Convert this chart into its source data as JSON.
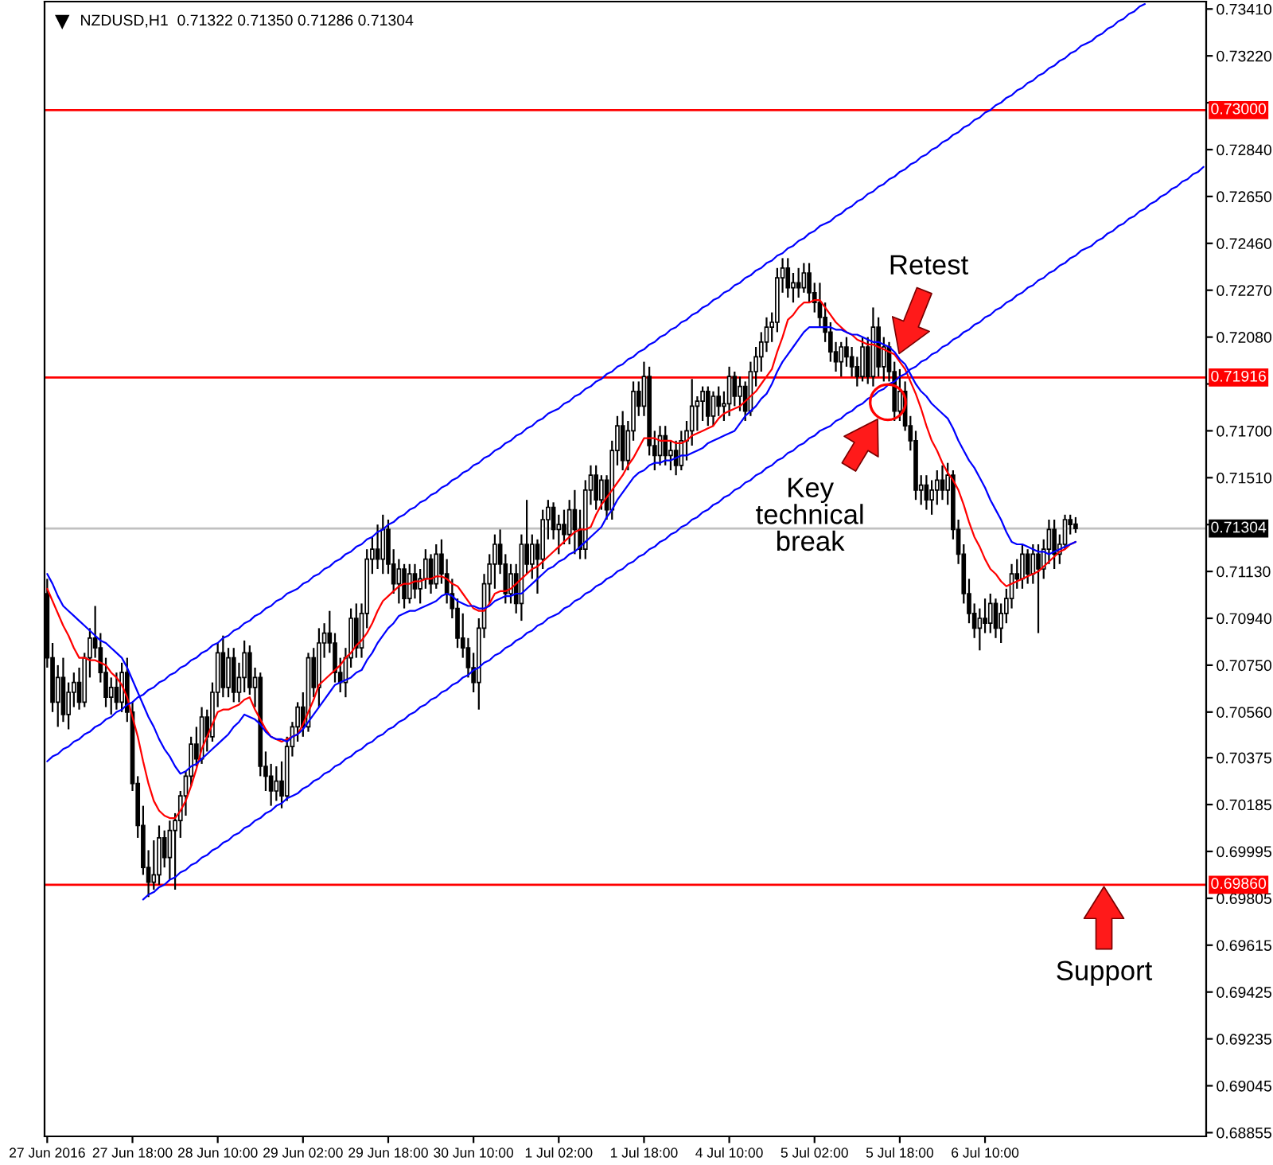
{
  "chart_data": {
    "type": "candlestick",
    "title": "NZDUSD,H1  0.71322 0.71350 0.71286 0.71304",
    "color": "#000000",
    "categories": [
      "27 Jun 2016",
      null,
      null,
      null,
      null,
      null,
      null,
      null,
      null,
      null,
      null,
      null,
      null,
      null,
      null,
      null,
      "27 Jun 18:00",
      null,
      null,
      null,
      null,
      null,
      null,
      null,
      null,
      null,
      null,
      null,
      null,
      null,
      null,
      null,
      "28 Jun 10:00",
      null,
      null,
      null,
      null,
      null,
      null,
      null,
      null,
      null,
      null,
      null,
      null,
      null,
      null,
      null,
      "29 Jun 02:00",
      null,
      null,
      null,
      null,
      null,
      null,
      null,
      null,
      null,
      null,
      null,
      null,
      null,
      null,
      null,
      "29 Jun 18:00",
      null,
      null,
      null,
      null,
      null,
      null,
      null,
      null,
      null,
      null,
      null,
      null,
      null,
      null,
      null,
      "30 Jun 10:00",
      null,
      null,
      null,
      null,
      null,
      null,
      null,
      null,
      null,
      null,
      null,
      null,
      null,
      null,
      null,
      "1 Jul 02:00",
      null,
      null,
      null,
      null,
      null,
      null,
      null,
      null,
      null,
      null,
      null,
      null,
      null,
      null,
      null,
      "1 Jul 18:00",
      null,
      null,
      null,
      null,
      null,
      null,
      null,
      null,
      null,
      null,
      null,
      null,
      null,
      null,
      null,
      "4 Jul 10:00",
      null,
      null,
      null,
      null,
      null,
      null,
      null,
      null,
      null,
      null,
      null,
      null,
      null,
      null,
      null,
      "5 Jul 02:00",
      null,
      null,
      null,
      null,
      null,
      null,
      null,
      null,
      null,
      null,
      null,
      null,
      null,
      null,
      null,
      "5 Jul 18:00",
      null,
      null,
      null,
      null,
      null,
      null,
      null,
      null,
      null,
      null,
      null,
      null,
      null,
      null,
      null,
      "6 Jul 10:00",
      null,
      null,
      null,
      null,
      null,
      null,
      null,
      null,
      null,
      null,
      null,
      null,
      null,
      null,
      null,
      null,
      null,
      null,
      null,
      null,
      null,
      null,
      null,
      null,
      null,
      null,
      null,
      null,
      null,
      null,
      null,
      null,
      null,
      null,
      null,
      null,
      null,
      null,
      null,
      null,
      null
    ],
    "ohlc": [
      [
        0.7104,
        0.711,
        0.7074,
        0.7078
      ],
      [
        0.7078,
        0.7084,
        0.7056,
        0.706
      ],
      [
        0.706,
        0.7075,
        0.705,
        0.707
      ],
      [
        0.707,
        0.7078,
        0.7052,
        0.7055
      ],
      [
        0.7055,
        0.7068,
        0.7049,
        0.7064
      ],
      [
        0.7064,
        0.7072,
        0.7058,
        0.7068
      ],
      [
        0.7068,
        0.7074,
        0.7057,
        0.706
      ],
      [
        0.706,
        0.708,
        0.7058,
        0.7078
      ],
      [
        0.7078,
        0.709,
        0.707,
        0.7086
      ],
      [
        0.7086,
        0.7099,
        0.7078,
        0.7082
      ],
      [
        0.7082,
        0.7088,
        0.7068,
        0.7072
      ],
      [
        0.7072,
        0.7078,
        0.7058,
        0.7062
      ],
      [
        0.7062,
        0.707,
        0.7055,
        0.7066
      ],
      [
        0.7066,
        0.7072,
        0.7057,
        0.706
      ],
      [
        0.706,
        0.7076,
        0.7056,
        0.7072
      ],
      [
        0.7072,
        0.7078,
        0.7052,
        0.7056
      ],
      [
        0.7056,
        0.706,
        0.7024,
        0.7027
      ],
      [
        0.7027,
        0.703,
        0.7005,
        0.701
      ],
      [
        0.701,
        0.7018,
        0.699,
        0.6993
      ],
      [
        0.6993,
        0.7,
        0.6981,
        0.6987
      ],
      [
        0.6987,
        0.7004,
        0.6984,
        0.699
      ],
      [
        0.699,
        0.701,
        0.6986,
        0.7005
      ],
      [
        0.7005,
        0.7008,
        0.6993,
        0.6997
      ],
      [
        0.6997,
        0.7012,
        0.6988,
        0.7008
      ],
      [
        0.7008,
        0.7015,
        0.6984,
        0.7012
      ],
      [
        0.7012,
        0.7024,
        0.7005,
        0.7022
      ],
      [
        0.7022,
        0.7032,
        0.7014,
        0.703
      ],
      [
        0.703,
        0.7046,
        0.7026,
        0.7043
      ],
      [
        0.7043,
        0.705,
        0.7034,
        0.7037
      ],
      [
        0.7037,
        0.7058,
        0.7035,
        0.7054
      ],
      [
        0.7054,
        0.7057,
        0.704,
        0.7046
      ],
      [
        0.7046,
        0.7068,
        0.7044,
        0.7064
      ],
      [
        0.7064,
        0.7084,
        0.7058,
        0.708
      ],
      [
        0.708,
        0.7087,
        0.7062,
        0.7066
      ],
      [
        0.7066,
        0.7082,
        0.7062,
        0.7078
      ],
      [
        0.7078,
        0.7082,
        0.706,
        0.7064
      ],
      [
        0.7064,
        0.7076,
        0.706,
        0.707
      ],
      [
        0.707,
        0.7085,
        0.7064,
        0.708
      ],
      [
        0.708,
        0.7083,
        0.7063,
        0.7066
      ],
      [
        0.7066,
        0.7074,
        0.7058,
        0.707
      ],
      [
        0.707,
        0.7072,
        0.703,
        0.7034
      ],
      [
        0.7034,
        0.704,
        0.7024,
        0.703
      ],
      [
        0.703,
        0.7035,
        0.7018,
        0.7024
      ],
      [
        0.7024,
        0.7034,
        0.702,
        0.7028
      ],
      [
        0.7028,
        0.7036,
        0.7017,
        0.7022
      ],
      [
        0.7022,
        0.7046,
        0.702,
        0.7042
      ],
      [
        0.7042,
        0.7052,
        0.7038,
        0.705
      ],
      [
        0.705,
        0.706,
        0.7044,
        0.7058
      ],
      [
        0.7058,
        0.7064,
        0.7046,
        0.705
      ],
      [
        0.705,
        0.708,
        0.7048,
        0.7078
      ],
      [
        0.7078,
        0.7082,
        0.7062,
        0.7066
      ],
      [
        0.7066,
        0.709,
        0.7058,
        0.7084
      ],
      [
        0.7084,
        0.7092,
        0.7078,
        0.7088
      ],
      [
        0.7088,
        0.7097,
        0.708,
        0.7084
      ],
      [
        0.7084,
        0.7088,
        0.7068,
        0.7072
      ],
      [
        0.7072,
        0.7078,
        0.7064,
        0.7068
      ],
      [
        0.7068,
        0.7082,
        0.7062,
        0.7078
      ],
      [
        0.7078,
        0.7098,
        0.7074,
        0.7094
      ],
      [
        0.7094,
        0.71,
        0.7078,
        0.7082
      ],
      [
        0.7082,
        0.71,
        0.7078,
        0.7096
      ],
      [
        0.7096,
        0.7122,
        0.709,
        0.7118
      ],
      [
        0.7118,
        0.7127,
        0.7112,
        0.7122
      ],
      [
        0.7122,
        0.7132,
        0.7114,
        0.7118
      ],
      [
        0.7118,
        0.7136,
        0.7112,
        0.713
      ],
      [
        0.713,
        0.7134,
        0.7112,
        0.7116
      ],
      [
        0.7116,
        0.7122,
        0.7104,
        0.7108
      ],
      [
        0.7108,
        0.7118,
        0.71,
        0.7114
      ],
      [
        0.7114,
        0.7116,
        0.7098,
        0.7102
      ],
      [
        0.7102,
        0.7116,
        0.71,
        0.7112
      ],
      [
        0.7112,
        0.7116,
        0.7102,
        0.7106
      ],
      [
        0.7106,
        0.7114,
        0.71,
        0.711
      ],
      [
        0.711,
        0.7122,
        0.7106,
        0.7118
      ],
      [
        0.7118,
        0.712,
        0.7104,
        0.7108
      ],
      [
        0.7108,
        0.7124,
        0.7106,
        0.712
      ],
      [
        0.712,
        0.7126,
        0.7108,
        0.7112
      ],
      [
        0.7112,
        0.7118,
        0.71,
        0.7104
      ],
      [
        0.7104,
        0.711,
        0.7094,
        0.7098
      ],
      [
        0.7098,
        0.7102,
        0.7082,
        0.7086
      ],
      [
        0.7086,
        0.7096,
        0.7078,
        0.7082
      ],
      [
        0.7082,
        0.7086,
        0.707,
        0.7074
      ],
      [
        0.7074,
        0.708,
        0.7064,
        0.7068
      ],
      [
        0.7068,
        0.7094,
        0.7057,
        0.709
      ],
      [
        0.709,
        0.7112,
        0.7086,
        0.7108
      ],
      [
        0.7108,
        0.712,
        0.71,
        0.7116
      ],
      [
        0.7116,
        0.7128,
        0.7106,
        0.7124
      ],
      [
        0.7124,
        0.713,
        0.7112,
        0.7116
      ],
      [
        0.7116,
        0.712,
        0.71,
        0.7104
      ],
      [
        0.7104,
        0.7116,
        0.71,
        0.7112
      ],
      [
        0.7112,
        0.7116,
        0.7096,
        0.71
      ],
      [
        0.71,
        0.7128,
        0.7093,
        0.7124
      ],
      [
        0.7124,
        0.7142,
        0.7112,
        0.7116
      ],
      [
        0.7116,
        0.7128,
        0.711,
        0.7124
      ],
      [
        0.7124,
        0.7126,
        0.7104,
        0.7118
      ],
      [
        0.7118,
        0.7138,
        0.7114,
        0.7134
      ],
      [
        0.7134,
        0.7142,
        0.7126,
        0.7139
      ],
      [
        0.7139,
        0.7141,
        0.7126,
        0.713
      ],
      [
        0.713,
        0.7136,
        0.712,
        0.7132
      ],
      [
        0.7132,
        0.7138,
        0.7124,
        0.7128
      ],
      [
        0.7128,
        0.7142,
        0.7124,
        0.7138
      ],
      [
        0.7138,
        0.7146,
        0.712,
        0.713
      ],
      [
        0.713,
        0.7138,
        0.7118,
        0.7122
      ],
      [
        0.7122,
        0.715,
        0.7118,
        0.7146
      ],
      [
        0.7146,
        0.7156,
        0.714,
        0.7152
      ],
      [
        0.7152,
        0.7156,
        0.7138,
        0.7142
      ],
      [
        0.7142,
        0.7152,
        0.7138,
        0.715
      ],
      [
        0.715,
        0.7152,
        0.7134,
        0.7138
      ],
      [
        0.7138,
        0.7166,
        0.7134,
        0.7162
      ],
      [
        0.7162,
        0.7176,
        0.7156,
        0.7172
      ],
      [
        0.7172,
        0.7178,
        0.7154,
        0.7158
      ],
      [
        0.7158,
        0.7174,
        0.7154,
        0.717
      ],
      [
        0.717,
        0.719,
        0.7166,
        0.7186
      ],
      [
        0.7186,
        0.719,
        0.7176,
        0.718
      ],
      [
        0.718,
        0.7198,
        0.7176,
        0.7192
      ],
      [
        0.7192,
        0.7196,
        0.716,
        0.7164
      ],
      [
        0.7164,
        0.717,
        0.7154,
        0.716
      ],
      [
        0.716,
        0.7172,
        0.7156,
        0.7168
      ],
      [
        0.7168,
        0.7172,
        0.7156,
        0.716
      ],
      [
        0.716,
        0.7166,
        0.7154,
        0.7162
      ],
      [
        0.7162,
        0.7166,
        0.7152,
        0.7156
      ],
      [
        0.7156,
        0.717,
        0.7154,
        0.7166
      ],
      [
        0.7166,
        0.7174,
        0.7158,
        0.717
      ],
      [
        0.717,
        0.7191,
        0.7164,
        0.718
      ],
      [
        0.718,
        0.7184,
        0.717,
        0.7182
      ],
      [
        0.7182,
        0.7188,
        0.7174,
        0.7186
      ],
      [
        0.7186,
        0.7188,
        0.7172,
        0.7176
      ],
      [
        0.7176,
        0.7186,
        0.7172,
        0.7184
      ],
      [
        0.7184,
        0.7188,
        0.7176,
        0.718
      ],
      [
        0.718,
        0.7186,
        0.7174,
        0.7181
      ],
      [
        0.7181,
        0.7196,
        0.7176,
        0.7192
      ],
      [
        0.7192,
        0.7194,
        0.718,
        0.7184
      ],
      [
        0.7184,
        0.7192,
        0.7178,
        0.7188
      ],
      [
        0.7188,
        0.719,
        0.7174,
        0.7178
      ],
      [
        0.7178,
        0.7198,
        0.7176,
        0.7194
      ],
      [
        0.7194,
        0.7204,
        0.7188,
        0.72
      ],
      [
        0.72,
        0.721,
        0.7194,
        0.7206
      ],
      [
        0.7206,
        0.7216,
        0.7202,
        0.7212
      ],
      [
        0.7212,
        0.7218,
        0.7206,
        0.7214
      ],
      [
        0.7214,
        0.7236,
        0.721,
        0.7232
      ],
      [
        0.7232,
        0.724,
        0.7226,
        0.7236
      ],
      [
        0.7236,
        0.724,
        0.7224,
        0.7228
      ],
      [
        0.7228,
        0.7234,
        0.7222,
        0.723
      ],
      [
        0.723,
        0.7236,
        0.7224,
        0.7228
      ],
      [
        0.7228,
        0.7238,
        0.7226,
        0.7234
      ],
      [
        0.7234,
        0.7238,
        0.7222,
        0.7226
      ],
      [
        0.7226,
        0.723,
        0.7218,
        0.7222
      ],
      [
        0.7222,
        0.723,
        0.7212,
        0.7216
      ],
      [
        0.7216,
        0.7222,
        0.7206,
        0.721
      ],
      [
        0.721,
        0.7214,
        0.7198,
        0.7202
      ],
      [
        0.7202,
        0.7206,
        0.7194,
        0.7198
      ],
      [
        0.7198,
        0.7206,
        0.7192,
        0.7204
      ],
      [
        0.7204,
        0.7208,
        0.7196,
        0.72
      ],
      [
        0.72,
        0.7204,
        0.7192,
        0.7196
      ],
      [
        0.7196,
        0.72,
        0.7188,
        0.7192
      ],
      [
        0.7192,
        0.7208,
        0.719,
        0.7204
      ],
      [
        0.7204,
        0.7208,
        0.7189,
        0.7192
      ],
      [
        0.7192,
        0.722,
        0.7188,
        0.7212
      ],
      [
        0.7212,
        0.7216,
        0.7192,
        0.7196
      ],
      [
        0.7196,
        0.7208,
        0.719,
        0.7204
      ],
      [
        0.7204,
        0.7206,
        0.719,
        0.7194
      ],
      [
        0.7194,
        0.7198,
        0.7174,
        0.7178
      ],
      [
        0.7178,
        0.7195,
        0.7174,
        0.7186
      ],
      [
        0.7186,
        0.719,
        0.717,
        0.7172
      ],
      [
        0.7172,
        0.7176,
        0.7162,
        0.7166
      ],
      [
        0.7166,
        0.717,
        0.7142,
        0.7146
      ],
      [
        0.7146,
        0.7152,
        0.714,
        0.7148
      ],
      [
        0.7148,
        0.7152,
        0.7138,
        0.7142
      ],
      [
        0.7142,
        0.715,
        0.7136,
        0.7146
      ],
      [
        0.7146,
        0.7154,
        0.714,
        0.715
      ],
      [
        0.715,
        0.7156,
        0.7142,
        0.7146
      ],
      [
        0.7146,
        0.7157,
        0.714,
        0.7152
      ],
      [
        0.7152,
        0.7154,
        0.7126,
        0.713
      ],
      [
        0.713,
        0.7134,
        0.7116,
        0.712
      ],
      [
        0.712,
        0.7124,
        0.71,
        0.7104
      ],
      [
        0.7104,
        0.711,
        0.7092,
        0.7096
      ],
      [
        0.7096,
        0.71,
        0.7086,
        0.709
      ],
      [
        0.709,
        0.7098,
        0.7081,
        0.7094
      ],
      [
        0.7094,
        0.7102,
        0.7088,
        0.7092
      ],
      [
        0.7092,
        0.7104,
        0.7088,
        0.71
      ],
      [
        0.71,
        0.7102,
        0.7086,
        0.709
      ],
      [
        0.709,
        0.71,
        0.7084,
        0.7096
      ],
      [
        0.7096,
        0.7106,
        0.7092,
        0.7102
      ],
      [
        0.7102,
        0.7116,
        0.7098,
        0.7112
      ],
      [
        0.7112,
        0.7118,
        0.7106,
        0.711
      ],
      [
        0.711,
        0.7124,
        0.7106,
        0.712
      ],
      [
        0.712,
        0.7122,
        0.7108,
        0.7112
      ],
      [
        0.7112,
        0.7124,
        0.7108,
        0.712
      ],
      [
        0.712,
        0.7124,
        0.7088,
        0.7114
      ],
      [
        0.7114,
        0.7126,
        0.711,
        0.7122
      ],
      [
        0.7122,
        0.7134,
        0.7116,
        0.713
      ],
      [
        0.713,
        0.7134,
        0.7114,
        0.712
      ],
      [
        0.712,
        0.7128,
        0.7116,
        0.7124
      ],
      [
        0.7124,
        0.7136,
        0.7122,
        0.7134
      ],
      [
        0.7134,
        0.7136,
        0.7128,
        0.7132
      ],
      [
        0.71322,
        0.7135,
        0.71286,
        0.71304
      ],
      null,
      null,
      null,
      null,
      null,
      null,
      null,
      null,
      null,
      null,
      null,
      null,
      null,
      null,
      null,
      null,
      null,
      null,
      null,
      null,
      null,
      null,
      null,
      null
    ],
    "series": [
      {
        "type": "line",
        "color": "#ff0000",
        "values": [
          0.7106,
          0.7101,
          0.7096,
          0.7091,
          0.7087,
          0.7082,
          0.7078,
          0.7078,
          0.7077,
          0.7077,
          0.7076,
          0.7075,
          0.7072,
          0.707,
          0.7067,
          0.7062,
          0.7054,
          0.7046,
          0.7036,
          0.7027,
          0.702,
          0.7016,
          0.7014,
          0.7013,
          0.7013,
          0.7016,
          0.702,
          0.7026,
          0.7033,
          0.7041,
          0.7046,
          0.7051,
          0.7056,
          0.7057,
          0.7057,
          0.7058,
          0.7059,
          0.7061,
          0.7062,
          0.7057,
          0.7053,
          0.7049,
          0.7046,
          0.7045,
          0.7044,
          0.7045,
          0.7046,
          0.7047,
          0.7051,
          0.7056,
          0.7061,
          0.7067,
          0.7069,
          0.7071,
          0.7073,
          0.7075,
          0.7078,
          0.708,
          0.7083,
          0.7085,
          0.7088,
          0.7092,
          0.7097,
          0.7101,
          0.7103,
          0.7105,
          0.7107,
          0.7108,
          0.7108,
          0.7109,
          0.7109,
          0.711,
          0.711,
          0.7111,
          0.7111,
          0.711,
          0.7108,
          0.7107,
          0.7104,
          0.7101,
          0.7098,
          0.7097,
          0.7097,
          0.71,
          0.7104,
          0.7105,
          0.7105,
          0.7106,
          0.7108,
          0.711,
          0.7112,
          0.7114,
          0.7115,
          0.7117,
          0.7119,
          0.7121,
          0.7123,
          0.7125,
          0.7127,
          0.7129,
          0.713,
          0.713,
          0.7131,
          0.7136,
          0.714,
          0.7143,
          0.7146,
          0.7149,
          0.7152,
          0.7156,
          0.7159,
          0.7163,
          0.7167,
          0.7167,
          0.7167,
          0.7166,
          0.7166,
          0.7166,
          0.7165,
          0.7165,
          0.7166,
          0.7168,
          0.7169,
          0.717,
          0.7171,
          0.7172,
          0.7175,
          0.7177,
          0.7178,
          0.7179,
          0.718,
          0.7182,
          0.7184,
          0.7186,
          0.7189,
          0.7192,
          0.7195,
          0.7202,
          0.7208,
          0.7215,
          0.7217,
          0.722,
          0.7222,
          0.7222,
          0.7223,
          0.7223,
          0.722,
          0.7217,
          0.7214,
          0.7212,
          0.721,
          0.7209,
          0.7207,
          0.7206,
          0.7205,
          0.7205,
          0.7204,
          0.7203,
          0.7202,
          0.7201,
          0.7198,
          0.7195,
          0.719,
          0.7185,
          0.7179,
          0.7172,
          0.7166,
          0.7162,
          0.7157,
          0.7153,
          0.715,
          0.7146,
          0.714,
          0.7133,
          0.7127,
          0.7123,
          0.7118,
          0.7114,
          0.7112,
          0.7109,
          0.7107,
          0.7108,
          0.7109,
          0.711,
          0.7111,
          0.7112,
          0.7113,
          0.7115,
          0.7117,
          0.7119,
          0.7121,
          0.7122,
          0.7124,
          0.7125,
          null,
          null,
          null,
          null,
          null,
          null,
          null,
          null,
          null,
          null,
          null,
          null,
          null,
          null,
          null,
          null,
          null,
          null,
          null,
          null,
          null,
          null,
          null,
          null
        ]
      },
      {
        "type": "line",
        "color": "#0000ff",
        "values": [
          0.7112,
          0.7108,
          0.7103,
          0.7099,
          0.7097,
          0.7095,
          0.7093,
          0.7091,
          0.7089,
          0.7087,
          0.7085,
          0.7084,
          0.7082,
          0.708,
          0.7078,
          0.7074,
          0.7069,
          0.7064,
          0.7059,
          0.7054,
          0.705,
          0.7045,
          0.7041,
          0.7038,
          0.7034,
          0.7031,
          0.7032,
          0.7034,
          0.7035,
          0.7037,
          0.7039,
          0.7041,
          0.7043,
          0.7045,
          0.7047,
          0.705,
          0.7052,
          0.7055,
          0.7054,
          0.7053,
          0.7051,
          0.7048,
          0.7046,
          0.7045,
          0.7045,
          0.7044,
          0.7046,
          0.7047,
          0.7049,
          0.7052,
          0.7055,
          0.7058,
          0.7061,
          0.7064,
          0.7067,
          0.7068,
          0.7069,
          0.707,
          0.7072,
          0.7073,
          0.7077,
          0.708,
          0.7084,
          0.7087,
          0.709,
          0.7092,
          0.7095,
          0.7096,
          0.7097,
          0.7097,
          0.7098,
          0.7099,
          0.71,
          0.7101,
          0.7103,
          0.7104,
          0.7103,
          0.7101,
          0.71,
          0.7099,
          0.7099,
          0.7098,
          0.7098,
          0.7099,
          0.7101,
          0.7102,
          0.7103,
          0.7103,
          0.7104,
          0.7104,
          0.7106,
          0.7108,
          0.711,
          0.7112,
          0.7114,
          0.7115,
          0.7117,
          0.7118,
          0.712,
          0.7121,
          0.7123,
          0.7125,
          0.7127,
          0.7129,
          0.7131,
          0.7135,
          0.7138,
          0.7142,
          0.7145,
          0.7148,
          0.7151,
          0.7153,
          0.7154,
          0.7156,
          0.7157,
          0.7157,
          0.7158,
          0.7158,
          0.7159,
          0.716,
          0.716,
          0.7161,
          0.7162,
          0.7163,
          0.7165,
          0.7166,
          0.7167,
          0.7168,
          0.7169,
          0.717,
          0.7173,
          0.7176,
          0.7178,
          0.718,
          0.7183,
          0.7185,
          0.7189,
          0.7194,
          0.7198,
          0.7201,
          0.7204,
          0.7207,
          0.721,
          0.7212,
          0.7212,
          0.7212,
          0.7212,
          0.7212,
          0.7211,
          0.7211,
          0.721,
          0.7209,
          0.7209,
          0.7208,
          0.7207,
          0.7206,
          0.7206,
          0.7205,
          0.7204,
          0.7202,
          0.7199,
          0.7197,
          0.7193,
          0.7189,
          0.7186,
          0.7184,
          0.7181,
          0.7179,
          0.7177,
          0.7175,
          0.7171,
          0.7166,
          0.7162,
          0.7158,
          0.7155,
          0.7151,
          0.7147,
          0.7142,
          0.7138,
          0.7134,
          0.7129,
          0.7125,
          0.7124,
          0.7124,
          0.7123,
          0.7122,
          0.7121,
          0.7121,
          0.712,
          0.7121,
          0.7122,
          0.7123,
          0.7124,
          0.7125,
          null,
          null,
          null,
          null,
          null,
          null,
          null,
          null,
          null,
          null,
          null,
          null,
          null,
          null,
          null,
          null,
          null,
          null,
          null,
          null,
          null,
          null,
          null,
          null
        ]
      },
      {
        "type": "line",
        "color": "#0000ff",
        "values": [
          0.7036,
          0.7038,
          0.7039,
          0.7041,
          0.7042,
          0.7044,
          0.7045,
          0.7047,
          0.7048,
          0.705,
          0.7051,
          0.7053,
          0.7054,
          0.7056,
          0.7057,
          0.7059,
          0.706,
          0.7062,
          0.7063,
          0.7065,
          0.7066,
          0.7068,
          0.7069,
          0.7071,
          0.7072,
          0.7074,
          0.7075,
          0.7077,
          0.7078,
          0.708,
          0.7081,
          0.7083,
          0.7084,
          0.7086,
          0.7087,
          0.7089,
          0.709,
          0.7092,
          0.7093,
          0.7095,
          0.7096,
          0.7098,
          0.7099,
          0.7101,
          0.7102,
          0.7104,
          0.7105,
          0.7106,
          0.7108,
          0.7109,
          0.7111,
          0.7112,
          0.7114,
          0.7115,
          0.7117,
          0.7118,
          0.712,
          0.7121,
          0.7123,
          0.7124,
          0.7126,
          0.7127,
          0.7129,
          0.713,
          0.7132,
          0.7133,
          0.7135,
          0.7136,
          0.7138,
          0.7139,
          0.7141,
          0.7142,
          0.7144,
          0.7145,
          0.7147,
          0.7148,
          0.715,
          0.7151,
          0.7153,
          0.7154,
          0.7156,
          0.7157,
          0.7159,
          0.716,
          0.7162,
          0.7163,
          0.7165,
          0.7166,
          0.7168,
          0.7169,
          0.7171,
          0.7172,
          0.7174,
          0.7175,
          0.7177,
          0.7178,
          0.7179,
          0.7181,
          0.7182,
          0.7184,
          0.7185,
          0.7187,
          0.7188,
          0.719,
          0.7191,
          0.7193,
          0.7194,
          0.7196,
          0.7197,
          0.7199,
          0.72,
          0.7202,
          0.7203,
          0.7205,
          0.7206,
          0.7208,
          0.7209,
          0.7211,
          0.7212,
          0.7214,
          0.7215,
          0.7217,
          0.7218,
          0.722,
          0.7221,
          0.7223,
          0.7224,
          0.7226,
          0.7227,
          0.7229,
          0.723,
          0.7232,
          0.7233,
          0.7235,
          0.7236,
          0.7238,
          0.7239,
          0.7241,
          0.7242,
          0.7244,
          0.7245,
          0.7247,
          0.7248,
          0.725,
          0.7251,
          0.7253,
          0.7254,
          0.7255,
          0.7257,
          0.7258,
          0.726,
          0.7261,
          0.7263,
          0.7264,
          0.7266,
          0.7267,
          0.7269,
          0.727,
          0.7272,
          0.7273,
          0.7275,
          0.7276,
          0.7278,
          0.7279,
          0.7281,
          0.7282,
          0.7284,
          0.7285,
          0.7287,
          0.7288,
          0.729,
          0.7291,
          0.7293,
          0.7294,
          0.7296,
          0.7297,
          0.7299,
          0.73,
          0.7302,
          0.7303,
          0.7305,
          0.7306,
          0.7308,
          0.7309,
          0.7311,
          0.7312,
          0.7314,
          0.7315,
          0.7317,
          0.7318,
          0.732,
          0.7321,
          0.7323,
          0.7324,
          0.7326,
          0.7327,
          0.7328,
          0.733,
          0.7331,
          0.7333,
          0.7334,
          0.7336,
          0.7337,
          0.7339,
          0.734,
          0.7342,
          0.7343,
          null,
          null,
          null,
          null,
          null,
          null,
          null,
          null,
          null,
          null,
          null
        ]
      },
      {
        "type": "line",
        "color": "#0000ff",
        "values": [
          null,
          null,
          null,
          null,
          null,
          null,
          null,
          null,
          null,
          null,
          null,
          null,
          null,
          null,
          null,
          null,
          null,
          null,
          0.698,
          0.6982,
          0.6983,
          0.6985,
          0.6986,
          0.6988,
          0.6989,
          0.6991,
          0.6992,
          0.6994,
          0.6995,
          0.6997,
          0.6998,
          0.7,
          0.7001,
          0.7003,
          0.7004,
          0.7006,
          0.7007,
          0.7009,
          0.701,
          0.7012,
          0.7013,
          0.7015,
          0.7016,
          0.7018,
          0.7019,
          0.7021,
          0.7022,
          0.7023,
          0.7025,
          0.7026,
          0.7028,
          0.7029,
          0.7031,
          0.7032,
          0.7034,
          0.7035,
          0.7037,
          0.7038,
          0.704,
          0.7041,
          0.7043,
          0.7044,
          0.7046,
          0.7047,
          0.7049,
          0.705,
          0.7052,
          0.7053,
          0.7055,
          0.7056,
          0.7058,
          0.7059,
          0.7061,
          0.7062,
          0.7064,
          0.7065,
          0.7067,
          0.7068,
          0.707,
          0.7071,
          0.7073,
          0.7074,
          0.7076,
          0.7077,
          0.7079,
          0.708,
          0.7082,
          0.7083,
          0.7085,
          0.7086,
          0.7088,
          0.7089,
          0.7091,
          0.7092,
          0.7094,
          0.7095,
          0.7096,
          0.7098,
          0.7099,
          0.7101,
          0.7102,
          0.7104,
          0.7105,
          0.7107,
          0.7108,
          0.711,
          0.7111,
          0.7113,
          0.7114,
          0.7116,
          0.7117,
          0.7119,
          0.712,
          0.7122,
          0.7123,
          0.7125,
          0.7126,
          0.7128,
          0.7129,
          0.7131,
          0.7132,
          0.7134,
          0.7135,
          0.7137,
          0.7138,
          0.714,
          0.7141,
          0.7143,
          0.7144,
          0.7146,
          0.7147,
          0.7149,
          0.715,
          0.7152,
          0.7153,
          0.7155,
          0.7156,
          0.7158,
          0.7159,
          0.7161,
          0.7162,
          0.7164,
          0.7165,
          0.7167,
          0.7168,
          0.717,
          0.7171,
          0.7172,
          0.7174,
          0.7175,
          0.7177,
          0.7178,
          0.718,
          0.7181,
          0.7183,
          0.7184,
          0.7186,
          0.7187,
          0.7189,
          0.719,
          0.7192,
          0.7193,
          0.7195,
          0.7196,
          0.7198,
          0.7199,
          0.7201,
          0.7202,
          0.7204,
          0.7205,
          0.7207,
          0.7208,
          0.721,
          0.7211,
          0.7213,
          0.7214,
          0.7216,
          0.7217,
          0.7219,
          0.722,
          0.7222,
          0.7223,
          0.7225,
          0.7226,
          0.7228,
          0.7229,
          0.7231,
          0.7232,
          0.7234,
          0.7235,
          0.7237,
          0.7238,
          0.724,
          0.7241,
          0.7243,
          0.7244,
          0.7245,
          0.7247,
          0.7248,
          0.725,
          0.7251,
          0.7253,
          0.7254,
          0.7256,
          0.7257,
          0.7259,
          0.726,
          0.7262,
          0.7263,
          0.7265,
          0.7266,
          0.7268,
          0.7269,
          0.7271,
          0.7272,
          0.7274,
          0.7275,
          0.7277
        ]
      }
    ],
    "ylim": [
      0.6884,
      0.7344
    ],
    "yticks": [
      {
        "value": 0.7341,
        "label": "0.73410"
      },
      {
        "value": 0.7322,
        "label": "0.73220"
      },
      {
        "value": 0.7303,
        "label": null
      },
      {
        "value": 0.7284,
        "label": "0.72840"
      },
      {
        "value": 0.7265,
        "label": "0.72650"
      },
      {
        "value": 0.7246,
        "label": "0.72460"
      },
      {
        "value": 0.7227,
        "label": "0.72270"
      },
      {
        "value": 0.7208,
        "label": "0.72080"
      },
      {
        "value": 0.7189,
        "label": null
      },
      {
        "value": 0.717,
        "label": "0.71700"
      },
      {
        "value": 0.7151,
        "label": "0.71510"
      },
      {
        "value": 0.7132,
        "label": null
      },
      {
        "value": 0.7113,
        "label": "0.71130"
      },
      {
        "value": 0.7094,
        "label": "0.70940"
      },
      {
        "value": 0.7075,
        "label": "0.70750"
      },
      {
        "value": 0.7056,
        "label": "0.70560"
      },
      {
        "value": 0.70375,
        "label": "0.70375"
      },
      {
        "value": 0.70185,
        "label": "0.70185"
      },
      {
        "value": 0.69995,
        "label": "0.69995"
      },
      {
        "value": 0.69805,
        "label": "0.69805"
      },
      {
        "value": 0.69615,
        "label": "0.69615"
      },
      {
        "value": 0.69425,
        "label": "0.69425"
      },
      {
        "value": 0.69235,
        "label": "0.69235"
      },
      {
        "value": 0.69045,
        "label": "0.69045"
      },
      {
        "value": 0.68855,
        "label": "0.68855"
      }
    ],
    "ref_lines": [
      {
        "axis": "y",
        "value": 0.73,
        "label": "0.73000",
        "color": "#ff0000"
      },
      {
        "axis": "y",
        "value": 0.71916,
        "label": "0.71916",
        "color": "#ff0000"
      },
      {
        "axis": "y",
        "value": 0.71304,
        "label": "0.71304",
        "color": "#c0c0c0"
      },
      {
        "axis": "y",
        "value": 0.6986,
        "label": "0.69860",
        "color": "#ff0000"
      }
    ],
    "annotations": [
      "Retest",
      "Key\ntechnical\nbreak",
      "Support"
    ]
  }
}
